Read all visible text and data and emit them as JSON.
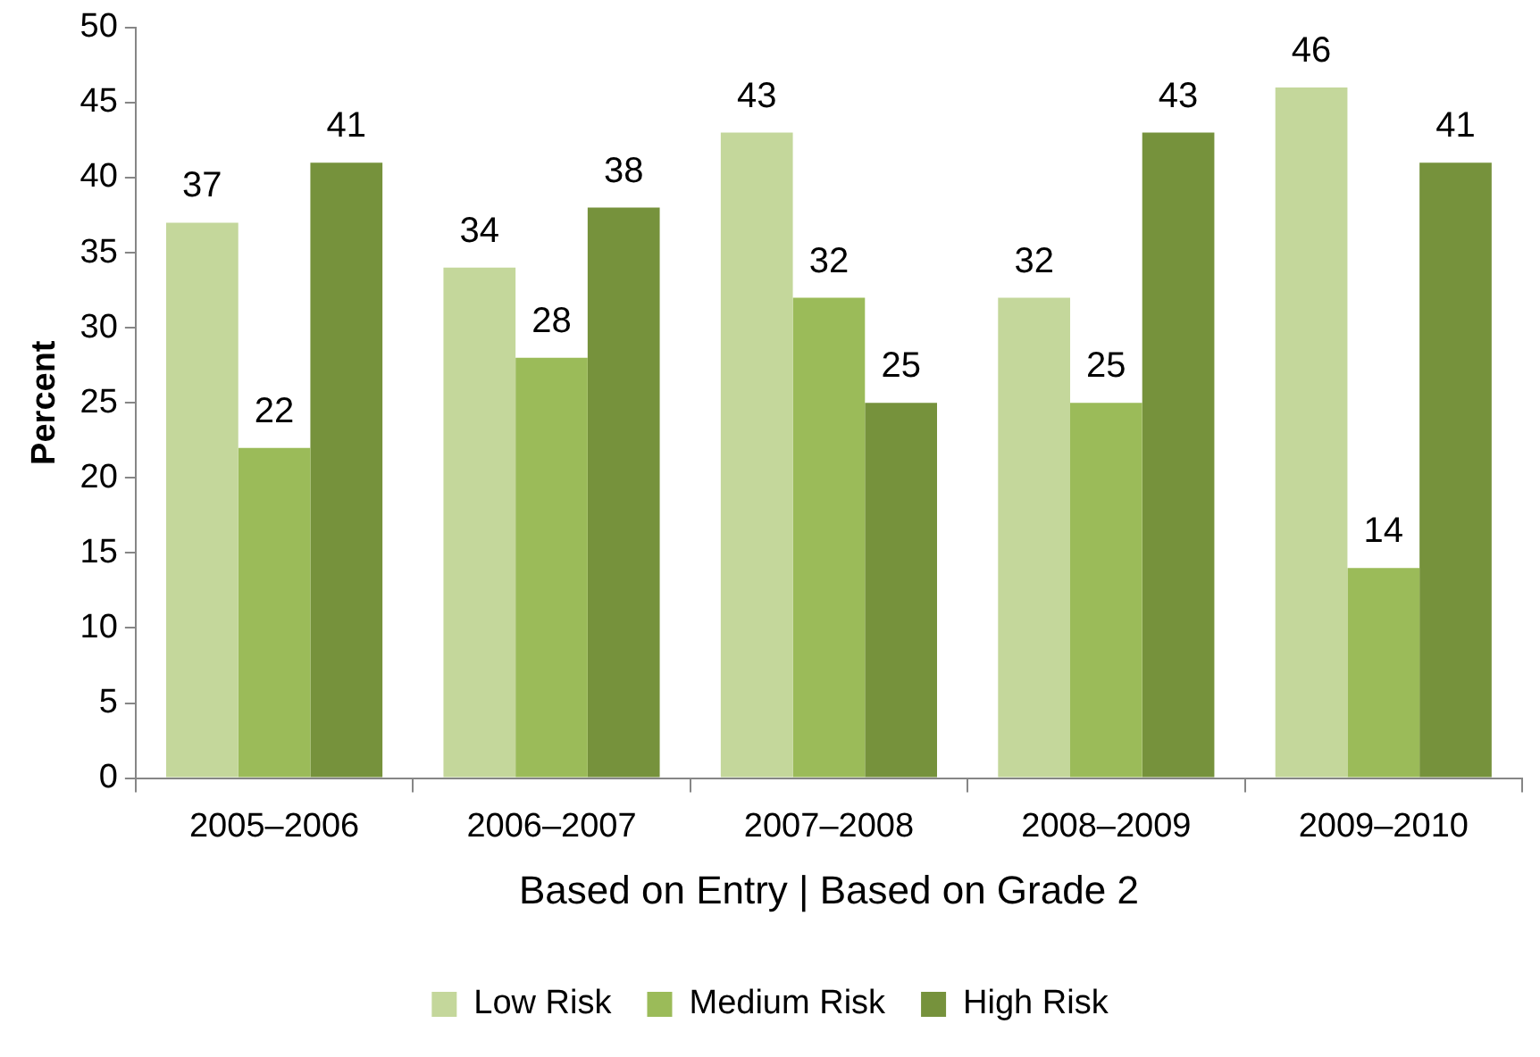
{
  "chart_data": {
    "type": "bar",
    "xlabel": "Based on Entry | Based on Grade 2",
    "ylabel": "Percent",
    "categories": [
      "2005–2006",
      "2006–2007",
      "2007–2008",
      "2008–2009",
      "2009–2010"
    ],
    "series": [
      {
        "name": "Low Risk",
        "color": "#c4d79b",
        "values": [
          37,
          34,
          43,
          32,
          46
        ]
      },
      {
        "name": "Medium Risk",
        "color": "#9bbb59",
        "values": [
          22,
          28,
          32,
          25,
          14
        ]
      },
      {
        "name": "High Risk",
        "color": "#76923c",
        "values": [
          41,
          38,
          25,
          43,
          41
        ]
      }
    ],
    "ylim": [
      0,
      50
    ],
    "yticks": [
      0,
      5,
      10,
      15,
      20,
      25,
      30,
      35,
      40,
      45,
      50
    ],
    "grid": false,
    "legend": "bottom",
    "data_labels": true
  }
}
